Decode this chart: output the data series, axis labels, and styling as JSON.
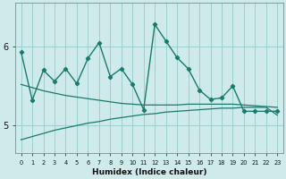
{
  "xlabel": "Humidex (Indice chaleur)",
  "x": [
    0,
    1,
    2,
    3,
    4,
    5,
    6,
    7,
    8,
    9,
    10,
    11,
    12,
    13,
    14,
    15,
    16,
    17,
    18,
    19,
    20,
    21,
    22,
    23
  ],
  "y_main": [
    5.93,
    5.32,
    5.7,
    5.56,
    5.72,
    5.53,
    5.85,
    6.05,
    5.62,
    5.72,
    5.52,
    5.2,
    6.28,
    6.07,
    5.86,
    5.72,
    5.45,
    5.33,
    5.35,
    5.5,
    5.18,
    5.18,
    5.18,
    5.18
  ],
  "y_trend1": [
    5.52,
    5.48,
    5.44,
    5.41,
    5.38,
    5.36,
    5.34,
    5.32,
    5.3,
    5.28,
    5.27,
    5.26,
    5.26,
    5.26,
    5.26,
    5.27,
    5.27,
    5.27,
    5.27,
    5.27,
    5.26,
    5.25,
    5.24,
    5.23
  ],
  "y_trend2": [
    4.82,
    4.86,
    4.9,
    4.94,
    4.97,
    5.0,
    5.03,
    5.05,
    5.08,
    5.1,
    5.12,
    5.14,
    5.15,
    5.17,
    5.18,
    5.19,
    5.2,
    5.21,
    5.22,
    5.22,
    5.23,
    5.23,
    5.23,
    5.13
  ],
  "line_color": "#1a7a6e",
  "bg_color": "#ceeaea",
  "grid_color": "#9ecece",
  "ylim_min": 4.65,
  "ylim_max": 6.55,
  "yticks": [
    5.0,
    6.0
  ],
  "ytick_labels": [
    "5",
    "6"
  ]
}
